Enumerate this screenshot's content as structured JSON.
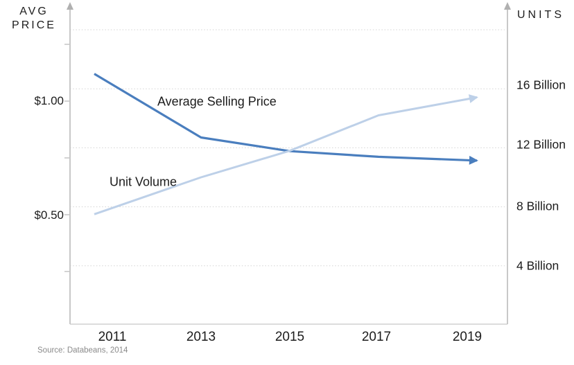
{
  "chart_data": {
    "type": "line",
    "title": "",
    "grid": "dotted-horizontal",
    "legend_position": "inline-labels",
    "x": [
      2011,
      2013,
      2015,
      2017,
      2019
    ],
    "series": [
      {
        "name": "Average Selling Price",
        "axis": "left",
        "units": "USD",
        "values": [
          1.12,
          0.84,
          0.78,
          0.755,
          0.74
        ],
        "color": "#4a7ebe",
        "trend": "declining"
      },
      {
        "name": "Unit Volume",
        "axis": "right",
        "units": "billions of units",
        "values": [
          7.5,
          10.0,
          11.8,
          14.2,
          15.3
        ],
        "color": "#bdd0e8",
        "trend": "rising"
      }
    ],
    "left_axis": {
      "title_lines": [
        "AVG",
        "PRICE"
      ],
      "range": [
        0,
        1.4
      ],
      "tick_values": [
        1.25,
        1.0,
        0.75,
        0.5,
        0.25
      ],
      "tick_labels": [
        {
          "value": 1.0,
          "text": "$1.00"
        },
        {
          "value": 0.5,
          "text": "$0.50"
        }
      ]
    },
    "right_axis": {
      "title": "UNITS",
      "range": [
        0,
        21
      ],
      "gridline_values": [
        20,
        16,
        12,
        8,
        4
      ],
      "tick_labels": [
        {
          "value": 16,
          "text": "16 Billion"
        },
        {
          "value": 12,
          "text": "12 Billion"
        },
        {
          "value": 8,
          "text": "8 Billion"
        },
        {
          "value": 4,
          "text": "4 Billion"
        }
      ]
    }
  },
  "source_note": "Source: Databeans, 2014",
  "colors": {
    "asp_line": "#4a7ebe",
    "unit_volume_line": "#bdd0e8",
    "axis": "#c8c8c8",
    "axis_arrow": "#b0b0b0",
    "gridline": "#d5d5d5",
    "text": "#1c1c1c",
    "muted_text": "#8a8a8a"
  }
}
